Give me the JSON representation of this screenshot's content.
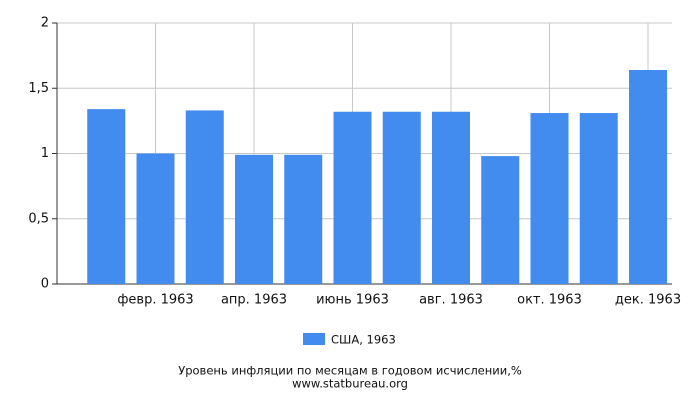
{
  "chart_data": {
    "type": "bar",
    "title": "Уровень инфляции по месяцам в годовом исчислении,%",
    "source": "www.statbureau.org",
    "categories": [
      null,
      "февр. 1963",
      null,
      "апр. 1963",
      null,
      "июнь 1963",
      null,
      "авг. 1963",
      null,
      "окт. 1963",
      null,
      "дек. 1963"
    ],
    "series": [
      {
        "name": "США, 1963",
        "color": "#428bef",
        "values": [
          1.34,
          1.0,
          1.33,
          0.99,
          0.99,
          1.32,
          1.32,
          1.32,
          0.98,
          1.31,
          1.31,
          1.64
        ]
      }
    ],
    "ylim": [
      0,
      2
    ],
    "yticks": [
      0,
      {
        "value": 0.5,
        "label": "0,5"
      },
      1,
      {
        "value": 1.5,
        "label": "1,5"
      },
      2
    ],
    "grid": true
  }
}
